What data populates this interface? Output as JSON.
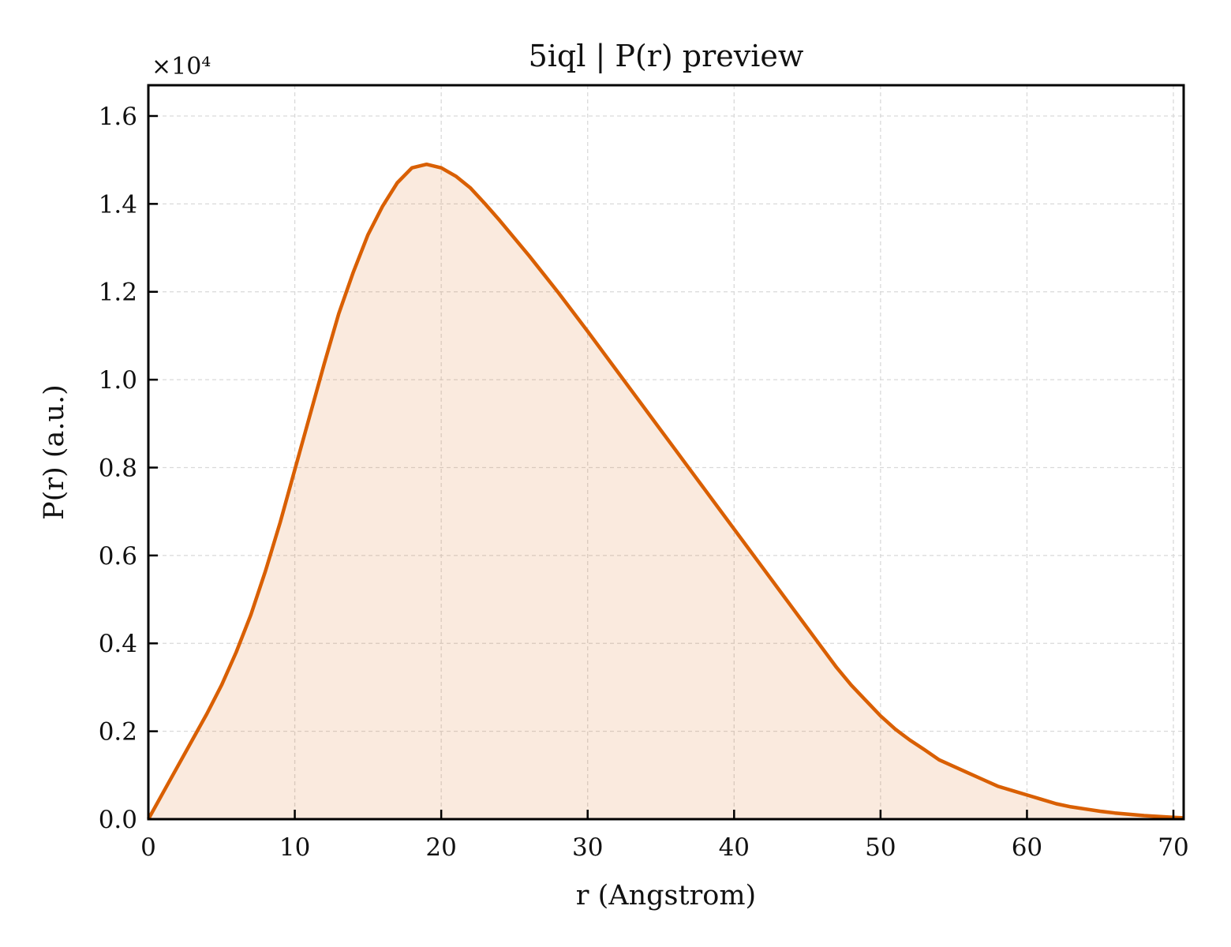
{
  "chart_data": {
    "type": "area",
    "title": "5iql | P(r) preview",
    "xlabel": "r (Angstrom)",
    "ylabel": "P(r) (a.u.)",
    "y_offset_label": "×10⁴",
    "y_scale": 10000,
    "xlim": [
      0,
      70.7
    ],
    "ylim": [
      0,
      16700
    ],
    "x_ticks": [
      0,
      10,
      20,
      30,
      40,
      50,
      60,
      70
    ],
    "x_tick_labels": [
      "0",
      "10",
      "20",
      "30",
      "40",
      "50",
      "60",
      "70"
    ],
    "y_ticks": [
      0,
      2000,
      4000,
      6000,
      8000,
      10000,
      12000,
      14000,
      16000
    ],
    "y_tick_labels": [
      "0.0",
      "0.2",
      "0.4",
      "0.6",
      "0.8",
      "1.0",
      "1.2",
      "1.4",
      "1.6"
    ],
    "grid": true,
    "colors": {
      "line": "#d95f02",
      "fill": "#d95f02",
      "fill_opacity": 0.13,
      "grid": "#d9d9d9"
    },
    "series": [
      {
        "x": [
          0,
          1,
          2,
          3,
          4,
          5,
          6,
          7,
          8,
          9,
          10,
          11,
          12,
          13,
          14,
          15,
          16,
          17,
          18,
          19,
          20,
          21,
          22,
          23,
          24,
          25,
          26,
          27,
          28,
          29,
          30,
          31,
          32,
          33,
          34,
          35,
          36,
          37,
          38,
          39,
          40,
          41,
          42,
          43,
          44,
          45,
          46,
          47,
          48,
          49,
          50,
          51,
          52,
          53,
          54,
          55,
          56,
          57,
          58,
          59,
          60,
          61,
          62,
          63,
          64,
          65,
          66,
          67,
          68,
          69,
          70,
          70.7
        ],
        "y": [
          0,
          600,
          1200,
          1800,
          2400,
          3050,
          3800,
          4650,
          5650,
          6750,
          7950,
          9150,
          10350,
          11500,
          12450,
          13300,
          13950,
          14480,
          14820,
          14900,
          14820,
          14630,
          14360,
          14000,
          13620,
          13220,
          12820,
          12400,
          11980,
          11540,
          11100,
          10650,
          10200,
          9750,
          9300,
          8850,
          8400,
          7950,
          7500,
          7050,
          6600,
          6150,
          5700,
          5250,
          4800,
          4350,
          3900,
          3450,
          3050,
          2700,
          2350,
          2050,
          1800,
          1580,
          1350,
          1200,
          1050,
          900,
          750,
          650,
          550,
          450,
          350,
          280,
          230,
          180,
          140,
          110,
          80,
          60,
          40,
          30
        ]
      }
    ]
  }
}
